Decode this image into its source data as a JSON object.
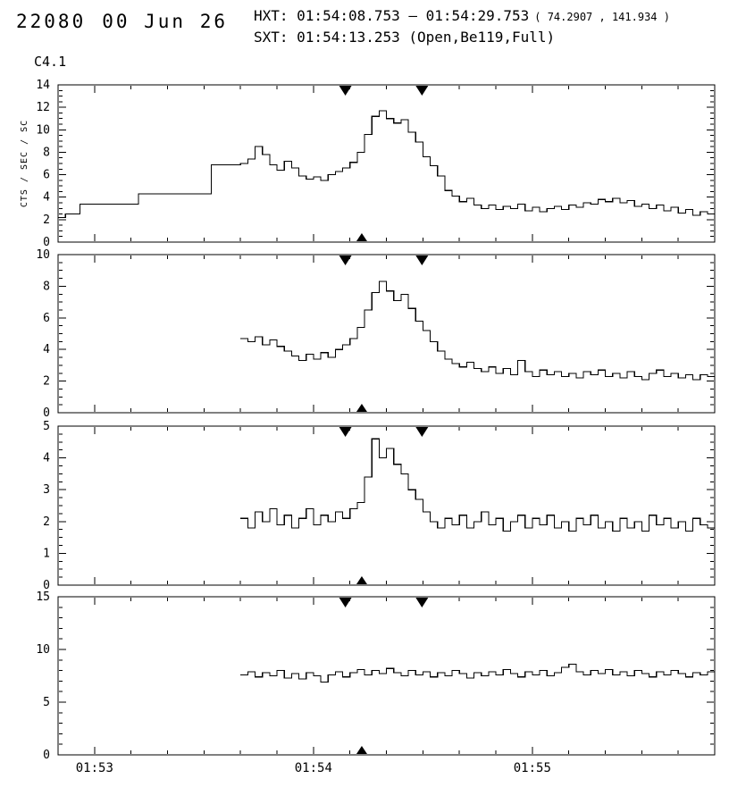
{
  "header": {
    "frame_id": "22080",
    "date": "00 Jun 26",
    "hxt_line": "HXT: 01:54:08.753 — 01:54:29.753",
    "hxt_coords": "( 74.2907 , 141.934 )",
    "sxt_line": "SXT: 01:54:13.253 (Open,Be119,Full)",
    "goes_class": "C4.1"
  },
  "chart_data": {
    "type": "line",
    "style": "step-histogram light curves, 4 stacked panels, black on white",
    "title": "",
    "ylabel": "CTS / SEC / SC",
    "x_axis": {
      "start_label": "01:52:50",
      "end_label": "01:55:50",
      "duration_s": 180,
      "bin_s": 2,
      "tick_labels": [
        "01:53",
        "01:54",
        "01:55"
      ],
      "tick_offsets_s": [
        10,
        70,
        130
      ],
      "minor_tick_s": 10
    },
    "markers": {
      "hxt_interval_s": [
        78.753,
        99.753
      ],
      "sxt_time_s": 83.253
    },
    "panels": [
      {
        "ylim": [
          0,
          14
        ],
        "yticks": [
          0,
          2,
          4,
          6,
          8,
          10,
          12,
          14
        ],
        "yminor": 0.5,
        "t0_s": 0,
        "values": [
          2.2,
          2.5,
          2.5,
          3.4,
          3.4,
          3.4,
          3.4,
          3.4,
          3.4,
          3.4,
          3.4,
          4.3,
          4.3,
          4.3,
          4.3,
          4.3,
          4.3,
          4.3,
          4.3,
          4.3,
          4.3,
          6.9,
          6.9,
          6.9,
          6.9,
          7.0,
          7.4,
          8.5,
          7.8,
          6.9,
          6.4,
          7.2,
          6.6,
          5.9,
          5.6,
          5.8,
          5.5,
          6.0,
          6.3,
          6.6,
          7.1,
          8.0,
          9.6,
          11.2,
          11.7,
          11.0,
          10.6,
          10.9,
          9.8,
          8.9,
          7.6,
          6.8,
          5.9,
          4.6,
          4.1,
          3.6,
          3.9,
          3.3,
          3.0,
          3.3,
          2.9,
          3.2,
          3.0,
          3.4,
          2.8,
          3.1,
          2.7,
          3.0,
          3.2,
          2.9,
          3.3,
          3.1,
          3.5,
          3.4,
          3.8,
          3.6,
          3.9,
          3.5,
          3.7,
          3.2,
          3.4,
          3.0,
          3.3,
          2.8,
          3.1,
          2.6,
          2.9,
          2.4,
          2.7,
          2.5
        ]
      },
      {
        "ylim": [
          0,
          10
        ],
        "yticks": [
          0,
          2,
          4,
          6,
          8,
          10
        ],
        "yminor": 0.5,
        "t0_s": 50,
        "values": [
          4.7,
          4.5,
          4.8,
          4.3,
          4.6,
          4.2,
          3.9,
          3.6,
          3.3,
          3.7,
          3.4,
          3.8,
          3.5,
          4.0,
          4.3,
          4.7,
          5.4,
          6.5,
          7.6,
          8.3,
          7.7,
          7.1,
          7.5,
          6.6,
          5.8,
          5.2,
          4.5,
          3.9,
          3.4,
          3.1,
          2.9,
          3.2,
          2.8,
          2.6,
          2.9,
          2.5,
          2.8,
          2.4,
          3.3,
          2.6,
          2.3,
          2.7,
          2.4,
          2.6,
          2.3,
          2.5,
          2.2,
          2.6,
          2.4,
          2.7,
          2.3,
          2.5,
          2.2,
          2.6,
          2.3,
          2.1,
          2.5,
          2.7,
          2.3,
          2.5,
          2.2,
          2.4,
          2.1,
          2.4,
          2.3
        ]
      },
      {
        "ylim": [
          0,
          5
        ],
        "yticks": [
          0,
          1,
          2,
          3,
          4,
          5
        ],
        "yminor": 0.25,
        "t0_s": 50,
        "values": [
          2.1,
          1.8,
          2.3,
          2.0,
          2.4,
          1.9,
          2.2,
          1.8,
          2.1,
          2.4,
          1.9,
          2.2,
          2.0,
          2.3,
          2.1,
          2.4,
          2.6,
          3.4,
          4.6,
          4.0,
          4.3,
          3.8,
          3.5,
          3.0,
          2.7,
          2.3,
          2.0,
          1.8,
          2.1,
          1.9,
          2.2,
          1.8,
          2.0,
          2.3,
          1.9,
          2.1,
          1.7,
          2.0,
          2.2,
          1.8,
          2.1,
          1.9,
          2.2,
          1.8,
          2.0,
          1.7,
          2.1,
          1.9,
          2.2,
          1.8,
          2.0,
          1.7,
          2.1,
          1.8,
          2.0,
          1.7,
          2.2,
          1.9,
          2.1,
          1.8,
          2.0,
          1.7,
          2.1,
          1.9,
          1.8
        ]
      },
      {
        "ylim": [
          0,
          15
        ],
        "yticks": [
          0,
          5,
          10,
          15
        ],
        "yminor": 1,
        "t0_s": 50,
        "values": [
          7.6,
          7.9,
          7.4,
          7.8,
          7.5,
          8.0,
          7.3,
          7.7,
          7.2,
          7.8,
          7.5,
          6.9,
          7.6,
          7.9,
          7.4,
          7.8,
          8.1,
          7.6,
          8.0,
          7.7,
          8.2,
          7.8,
          7.5,
          8.0,
          7.6,
          7.9,
          7.4,
          7.8,
          7.5,
          8.0,
          7.7,
          7.3,
          7.8,
          7.5,
          7.9,
          7.6,
          8.1,
          7.7,
          7.4,
          7.9,
          7.6,
          8.0,
          7.5,
          7.8,
          8.3,
          8.6,
          7.9,
          7.6,
          8.0,
          7.7,
          8.1,
          7.6,
          7.9,
          7.5,
          8.0,
          7.7,
          7.4,
          7.9,
          7.6,
          8.0,
          7.7,
          7.4,
          7.8,
          7.6,
          7.9
        ]
      }
    ]
  }
}
